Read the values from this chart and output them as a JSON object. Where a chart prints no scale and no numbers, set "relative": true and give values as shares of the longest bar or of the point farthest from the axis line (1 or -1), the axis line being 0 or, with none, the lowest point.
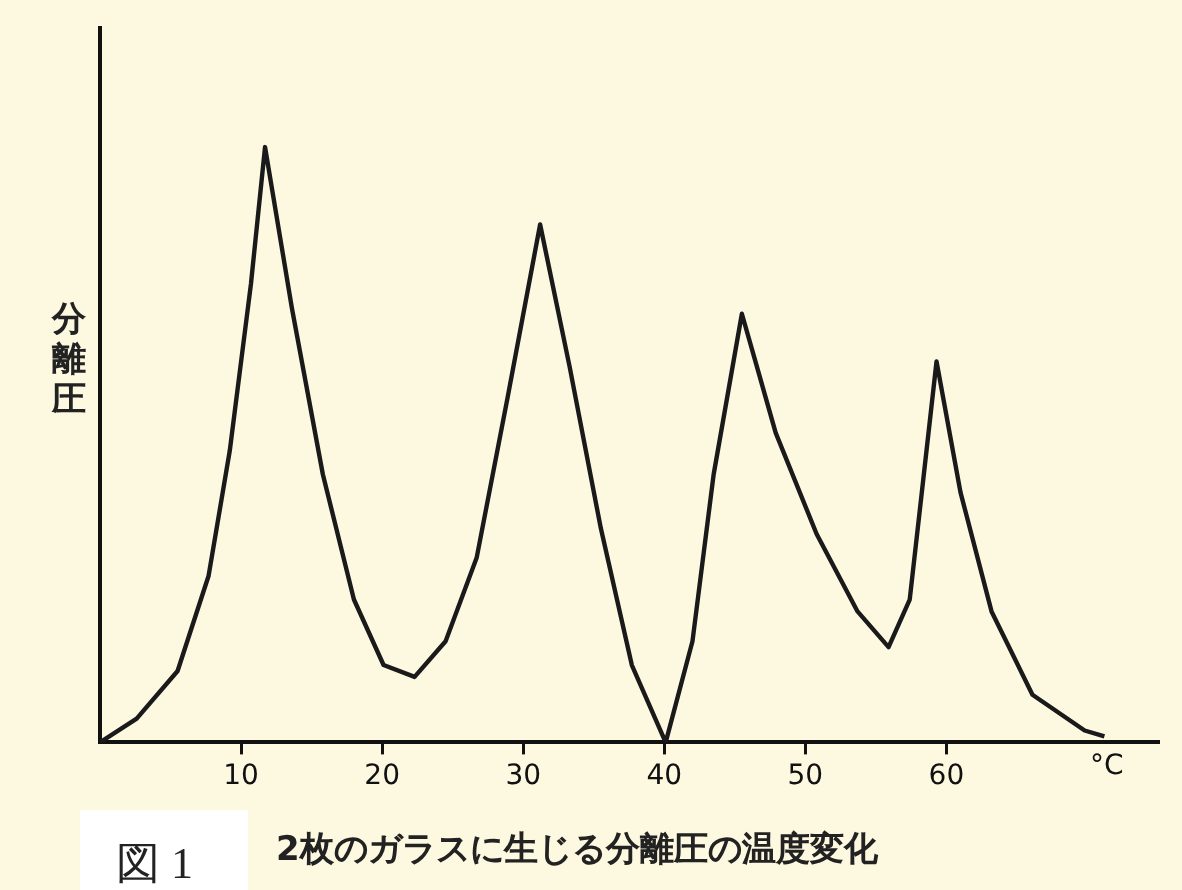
{
  "chart_data": {
    "type": "line",
    "relative": true,
    "title": "2枚のガラスに生じる分離圧の温度変化",
    "ylabel": "分離圧",
    "xlabel": "°C",
    "annotations": [
      "図 1"
    ],
    "xlim": [
      0,
      75
    ],
    "xticks": [
      10,
      20,
      30,
      40,
      50,
      60
    ],
    "grid": false,
    "legend": false,
    "marker": "none",
    "line_style": "solid",
    "x": [
      0,
      2.6,
      5.5,
      7.7,
      9.2,
      10.7,
      11.7,
      13.6,
      15.8,
      18,
      20.1,
      22.3,
      24.5,
      26.7,
      28.9,
      31.2,
      33.3,
      35.5,
      37.7,
      40.1,
      42,
      43.5,
      45.5,
      47.9,
      50.8,
      53.7,
      55.9,
      57.4,
      58.4,
      59.3,
      61,
      63.2,
      66.1,
      69.8,
      71.2
    ],
    "series": [
      {
        "color": "#1a1a1a",
        "values": [
          0,
          0.04,
          0.12,
          0.28,
          0.49,
          0.77,
          1,
          0.73,
          0.45,
          0.24,
          0.13,
          0.11,
          0.17,
          0.31,
          0.58,
          0.87,
          0.63,
          0.36,
          0.13,
          0,
          0.17,
          0.45,
          0.72,
          0.52,
          0.35,
          0.22,
          0.16,
          0.24,
          0.45,
          0.64,
          0.42,
          0.22,
          0.08,
          0.02,
          0.01
        ]
      }
    ]
  }
}
